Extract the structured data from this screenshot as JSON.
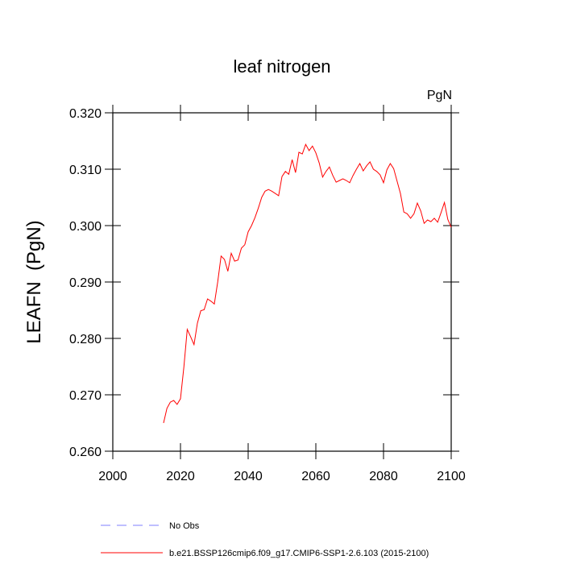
{
  "chart_data": {
    "type": "line",
    "title": "leaf nitrogen",
    "units": "PgN",
    "ylabel": "LEAFN  (PgN)",
    "xlim": [
      2000,
      2100
    ],
    "ylim": [
      0.26,
      0.32
    ],
    "xticks": [
      2000,
      2020,
      2040,
      2060,
      2080,
      2100
    ],
    "yticks": [
      {
        "value": 0.26,
        "label": "0.260"
      },
      {
        "value": 0.27,
        "label": "0.270"
      },
      {
        "value": 0.28,
        "label": "0.280"
      },
      {
        "value": 0.29,
        "label": "0.290"
      },
      {
        "value": 0.3,
        "label": "0.300"
      },
      {
        "value": 0.31,
        "label": "0.310"
      },
      {
        "value": 0.32,
        "label": "0.320"
      }
    ],
    "x": [
      2015,
      2016,
      2017,
      2018,
      2019,
      2020,
      2021,
      2022,
      2023,
      2024,
      2025,
      2026,
      2027,
      2028,
      2029,
      2030,
      2031,
      2032,
      2033,
      2034,
      2035,
      2036,
      2037,
      2038,
      2039,
      2040,
      2041,
      2042,
      2043,
      2044,
      2045,
      2046,
      2047,
      2048,
      2049,
      2050,
      2051,
      2052,
      2053,
      2054,
      2055,
      2056,
      2057,
      2058,
      2059,
      2060,
      2061,
      2062,
      2063,
      2064,
      2065,
      2066,
      2067,
      2068,
      2069,
      2070,
      2071,
      2072,
      2073,
      2074,
      2075,
      2076,
      2077,
      2078,
      2079,
      2080,
      2081,
      2082,
      2083,
      2084,
      2085,
      2086,
      2087,
      2088,
      2089,
      2090,
      2091,
      2092,
      2093,
      2094,
      2095,
      2096,
      2097,
      2098,
      2099,
      2100
    ],
    "series": [
      {
        "name": "No Obs",
        "color": "#7f7fff",
        "dashed": true,
        "values": [
          null,
          null,
          null,
          null,
          null,
          null,
          null,
          null,
          null,
          null,
          null,
          null,
          null,
          null,
          null,
          null,
          null,
          null,
          null,
          null,
          null,
          null,
          null,
          null,
          null,
          null,
          null,
          null,
          null,
          null,
          null,
          null,
          null,
          null,
          null,
          null,
          null,
          null,
          null,
          null,
          null,
          null,
          null,
          null,
          null,
          null,
          null,
          null,
          null,
          null,
          null,
          null,
          null,
          null,
          null,
          null,
          null,
          null,
          null,
          null,
          null,
          null,
          null,
          null,
          null,
          null,
          null,
          null,
          null,
          null,
          null,
          null,
          null,
          null,
          null,
          null,
          null,
          null,
          null,
          null,
          null,
          null,
          null,
          null,
          null,
          null
        ]
      },
      {
        "name": "b.e21.BSSP126cmip6.f09_g17.CMIP6-SSP1-2.6.103 (2015-2100)",
        "color": "#ff0000",
        "dashed": false,
        "values": [
          0.265,
          0.2676,
          0.2687,
          0.269,
          0.2683,
          0.2693,
          0.2749,
          0.2816,
          0.2803,
          0.2789,
          0.2827,
          0.2849,
          0.2851,
          0.287,
          0.2866,
          0.2861,
          0.29,
          0.2946,
          0.294,
          0.2919,
          0.2951,
          0.2937,
          0.2939,
          0.296,
          0.2966,
          0.2989,
          0.3,
          0.3014,
          0.3031,
          0.305,
          0.3061,
          0.3064,
          0.3061,
          0.3057,
          0.3053,
          0.3087,
          0.3096,
          0.3091,
          0.3117,
          0.3094,
          0.313,
          0.3127,
          0.3144,
          0.3133,
          0.3141,
          0.3129,
          0.3111,
          0.3086,
          0.3096,
          0.3104,
          0.3089,
          0.3077,
          0.308,
          0.3083,
          0.308,
          0.3076,
          0.3089,
          0.31,
          0.311,
          0.3097,
          0.3106,
          0.3113,
          0.31,
          0.3096,
          0.309,
          0.3076,
          0.3099,
          0.311,
          0.3101,
          0.3079,
          0.3057,
          0.3024,
          0.3021,
          0.3013,
          0.3021,
          0.304,
          0.3026,
          0.3004,
          0.301,
          0.3007,
          0.3013,
          0.3006,
          0.3023,
          0.3041,
          0.3011,
          0.2997
        ]
      }
    ]
  }
}
